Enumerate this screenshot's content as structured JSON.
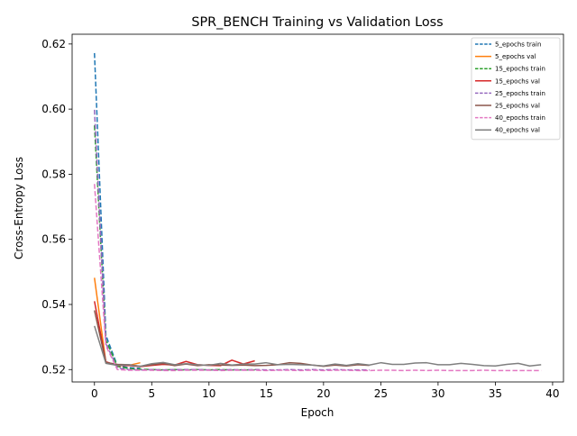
{
  "chart_data": {
    "type": "line",
    "title": "SPR_BENCH Training vs Validation Loss",
    "xlabel": "Epoch",
    "ylabel": "Cross-Entropy Loss",
    "xlim": [
      -1.95,
      40.95
    ],
    "ylim": [
      0.5162,
      0.623
    ],
    "xticks": [
      0,
      5,
      10,
      15,
      20,
      25,
      30,
      35,
      40
    ],
    "yticks": [
      0.52,
      0.54,
      0.56,
      0.58,
      0.6,
      0.62
    ],
    "ytick_labels": [
      "0.52",
      "0.54",
      "0.56",
      "0.58",
      "0.60",
      "0.62"
    ],
    "grid": false,
    "legend_position": "top-right",
    "series": [
      {
        "name": "5_epochs train",
        "color": "#1f77b4",
        "dash": true,
        "y": [
          0.6172,
          0.5305,
          0.5212,
          0.5206,
          0.5204
        ]
      },
      {
        "name": "5_epochs val",
        "color": "#ff7f0e",
        "dash": false,
        "y": [
          0.5482,
          0.5221,
          0.5215,
          0.5213,
          0.5221
        ]
      },
      {
        "name": "15_epochs train",
        "color": "#2ca02c",
        "dash": true,
        "y": [
          0.595,
          0.5291,
          0.521,
          0.5203,
          0.5201,
          0.52,
          0.5199,
          0.52,
          0.5199,
          0.52,
          0.5199,
          0.52,
          0.5199,
          0.5199,
          0.5199
        ]
      },
      {
        "name": "15_epochs val",
        "color": "#d62728",
        "dash": false,
        "y": [
          0.541,
          0.5224,
          0.5212,
          0.5213,
          0.5209,
          0.5213,
          0.5216,
          0.5214,
          0.5225,
          0.5215,
          0.5213,
          0.5212,
          0.5229,
          0.5217,
          0.5227
        ]
      },
      {
        "name": "25_epochs train",
        "color": "#9467bd",
        "dash": true,
        "y": [
          0.5998,
          0.528,
          0.5205,
          0.52,
          0.5199,
          0.52,
          0.5199,
          0.52,
          0.52,
          0.52,
          0.5199,
          0.5199,
          0.52,
          0.5199,
          0.52,
          0.5199,
          0.5199,
          0.52,
          0.5199,
          0.52,
          0.5199,
          0.52,
          0.5199,
          0.5199,
          0.5199
        ]
      },
      {
        "name": "25_epochs val",
        "color": "#8c564b",
        "dash": false,
        "y": [
          0.5382,
          0.5222,
          0.5216,
          0.5215,
          0.521,
          0.5215,
          0.5219,
          0.5212,
          0.5217,
          0.5212,
          0.5215,
          0.5214,
          0.5213,
          0.5214,
          0.5212,
          0.5213,
          0.5215,
          0.5221,
          0.5219,
          0.5214,
          0.521,
          0.5214,
          0.5211,
          0.5215,
          0.5213
        ]
      },
      {
        "name": "40_epochs train",
        "color": "#e377c2",
        "dash": true,
        "y": [
          0.577,
          0.5273,
          0.52,
          0.5198,
          0.5198,
          0.5198,
          0.5197,
          0.5197,
          0.5198,
          0.5198,
          0.5198,
          0.5197,
          0.5198,
          0.5198,
          0.5198,
          0.5197,
          0.5198,
          0.5198,
          0.5197,
          0.5198,
          0.5197,
          0.5198,
          0.5198,
          0.5197,
          0.5197,
          0.5198,
          0.5198,
          0.5197,
          0.5198,
          0.5197,
          0.5198,
          0.5197,
          0.5197,
          0.5197,
          0.5198,
          0.5197,
          0.5197,
          0.5197,
          0.5197,
          0.5197
        ]
      },
      {
        "name": "40_epochs val",
        "color": "#7f7f7f",
        "dash": false,
        "y": [
          0.5334,
          0.5219,
          0.5213,
          0.5215,
          0.521,
          0.5218,
          0.5222,
          0.5215,
          0.5218,
          0.5215,
          0.5213,
          0.5219,
          0.5214,
          0.5217,
          0.5217,
          0.5221,
          0.5215,
          0.5216,
          0.5215,
          0.5214,
          0.5211,
          0.5217,
          0.5213,
          0.5218,
          0.5214,
          0.5221,
          0.5216,
          0.5216,
          0.522,
          0.5221,
          0.5215,
          0.5215,
          0.5219,
          0.5216,
          0.5212,
          0.5211,
          0.5216,
          0.5219,
          0.5211,
          0.5215
        ]
      }
    ]
  }
}
